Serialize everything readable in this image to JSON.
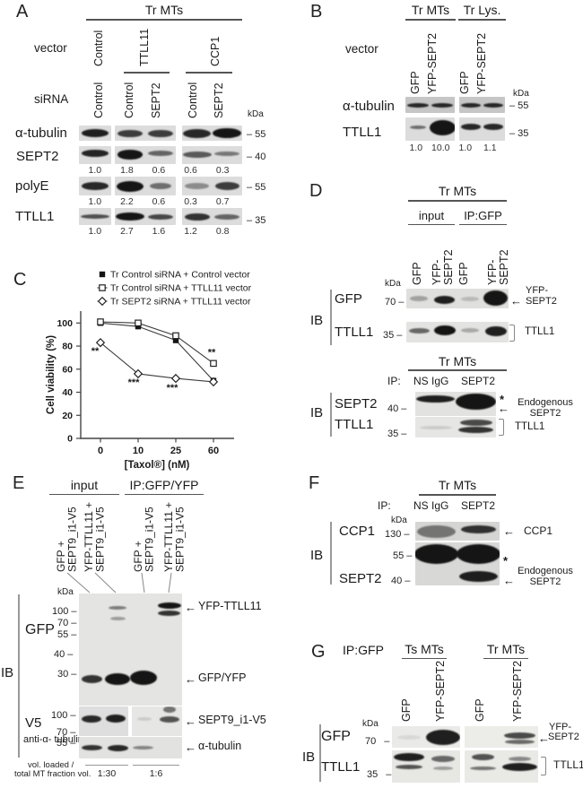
{
  "colors": {
    "text": "#1a1a1a",
    "band": "#151515",
    "membrane": "#dcdcdc",
    "axis": "#444"
  },
  "panelA": {
    "label": "A",
    "header": "Tr MTs",
    "vector_label": "vector",
    "sirna_label": "siRNA",
    "kda_label": "kDa",
    "vector_lanes": [
      "Control",
      "TTLL11",
      "CCP1"
    ],
    "sirna_lanes": [
      "Control",
      "Control",
      "SEPT2",
      "Control",
      "SEPT2"
    ],
    "rows": [
      {
        "label": "α-tubulin",
        "marker": "– 55",
        "strips": [
          [
            {
              "l": 0,
              "y": 0.5,
              "o": 0.95,
              "h": 9,
              "w": 0.82
            }
          ],
          [
            {
              "l": 0,
              "y": 0.5,
              "o": 0.8,
              "h": 8,
              "w": 0.8
            },
            {
              "l": 1,
              "y": 0.55,
              "o": 0.8,
              "h": 8,
              "w": 0.8
            }
          ],
          [
            {
              "l": 0,
              "y": 0.5,
              "o": 0.9,
              "h": 10,
              "w": 0.92
            },
            {
              "l": 1,
              "y": 0.5,
              "o": 1,
              "h": 11,
              "w": 0.95
            }
          ]
        ]
      },
      {
        "label": "SEPT2",
        "marker": "– 40",
        "values": [
          "1.0",
          "1.8",
          "0.6",
          "0.6",
          "0.3"
        ],
        "strips": [
          [
            {
              "l": 0,
              "y": 0.42,
              "o": 0.92,
              "h": 8,
              "w": 0.85
            }
          ],
          [
            {
              "l": 0,
              "y": 0.45,
              "o": 1,
              "h": 11,
              "w": 0.85
            },
            {
              "l": 1,
              "y": 0.42,
              "o": 0.6,
              "h": 6,
              "w": 0.8
            }
          ],
          [
            {
              "l": 0,
              "y": 0.45,
              "o": 0.65,
              "h": 7,
              "w": 0.95
            },
            {
              "l": 1,
              "y": 0.42,
              "o": 0.5,
              "h": 5,
              "w": 0.85
            }
          ]
        ]
      },
      {
        "label": "polyE",
        "marker": "– 55",
        "values": [
          "1.0",
          "2.2",
          "0.6",
          "0.3",
          "0.7"
        ],
        "strips": [
          [
            {
              "l": 0,
              "y": 0.5,
              "o": 0.9,
              "h": 9,
              "w": 0.85
            }
          ],
          [
            {
              "l": 0,
              "y": 0.5,
              "o": 1,
              "h": 12,
              "w": 0.88
            },
            {
              "l": 1,
              "y": 0.5,
              "o": 0.55,
              "h": 7,
              "w": 0.7
            }
          ],
          [
            {
              "l": 0,
              "y": 0.5,
              "o": 0.4,
              "h": 7,
              "w": 0.8
            },
            {
              "l": 1,
              "y": 0.5,
              "o": 0.8,
              "h": 9,
              "w": 0.8
            }
          ]
        ]
      },
      {
        "label": "TTLL1",
        "marker": "– 35",
        "values": [
          "1.0",
          "2.7",
          "1.6",
          "1.2",
          "0.8"
        ],
        "strips": [
          [
            {
              "l": 0,
              "y": 0.5,
              "o": 0.7,
              "h": 5,
              "w": 0.9
            }
          ],
          [
            {
              "l": 0,
              "y": 0.5,
              "o": 1,
              "h": 9,
              "w": 0.95
            },
            {
              "l": 1,
              "y": 0.5,
              "o": 0.75,
              "h": 6,
              "w": 0.8
            }
          ],
          [
            {
              "l": 0,
              "y": 0.5,
              "o": 0.85,
              "h": 8,
              "w": 0.85
            },
            {
              "l": 1,
              "y": 0.5,
              "o": 0.6,
              "h": 6,
              "w": 0.85
            }
          ]
        ]
      }
    ]
  },
  "panelB": {
    "label": "B",
    "headers": [
      "Tr MTs",
      "Tr Lys."
    ],
    "vector_label": "vector",
    "kda_label": "kDa",
    "lanes": [
      "GFP",
      "YFP-SEPT2",
      "GFP",
      "YFP-SEPT2"
    ],
    "rows": [
      {
        "label": "α-tubulin",
        "marker": "– 55",
        "strips": [
          [
            {
              "l": 0,
              "y": 0.5,
              "o": 0.9,
              "h": 5,
              "w": 0.88
            },
            {
              "l": 1,
              "y": 0.5,
              "o": 0.9,
              "h": 5,
              "w": 0.88
            }
          ],
          [
            {
              "l": 0,
              "y": 0.5,
              "o": 0.9,
              "h": 5,
              "w": 0.88
            },
            {
              "l": 1,
              "y": 0.5,
              "o": 0.9,
              "h": 5,
              "w": 0.88
            }
          ]
        ]
      },
      {
        "label": "TTLL1",
        "marker": "– 35",
        "values": [
          "1.0",
          "10.0",
          "1.0",
          "1.1"
        ],
        "strips": [
          [
            {
              "l": 0,
              "y": 0.42,
              "o": 0.55,
              "h": 4,
              "w": 0.65
            },
            {
              "l": 1,
              "y": 0.45,
              "o": 1,
              "h": 17,
              "w": 1.05
            }
          ],
          [
            {
              "l": 0,
              "y": 0.42,
              "o": 0.9,
              "h": 7,
              "w": 0.85
            },
            {
              "l": 1,
              "y": 0.42,
              "o": 0.9,
              "h": 7,
              "w": 0.85
            }
          ]
        ]
      }
    ]
  },
  "panelC": {
    "label": "C"
  },
  "chart_data": {
    "type": "line",
    "xlabel": "[Taxol®] (nM)",
    "ylabel": "Cell viability (%)",
    "categories": [
      "0",
      "10",
      "25",
      "60"
    ],
    "yticks": [
      0,
      20,
      40,
      60,
      80,
      100
    ],
    "ylim": [
      0,
      110
    ],
    "grid": false,
    "legend_position": "top",
    "series": [
      {
        "name": "Tr Control siRNA + Control vector",
        "marker": "filled-square",
        "values": [
          100,
          97,
          85,
          50
        ]
      },
      {
        "name": "Tr Control siRNA + TTLL11 vector",
        "marker": "open-square",
        "values": [
          101,
          100,
          89,
          65
        ]
      },
      {
        "name": "Tr SEPT2 siRNA + TTLL11 vector",
        "marker": "open-diamond",
        "values": [
          83,
          56,
          52,
          49
        ]
      }
    ],
    "annotations": [
      {
        "x": 0,
        "value": 73,
        "dx": -6,
        "text": "**"
      },
      {
        "x": 1,
        "value": 46,
        "dx": -5,
        "text": "***"
      },
      {
        "x": 2,
        "value": 41,
        "dx": -4,
        "text": "***"
      },
      {
        "x": 3,
        "value": 72,
        "dx": -2,
        "text": "**"
      }
    ]
  },
  "panelD": {
    "label": "D",
    "top": {
      "header": "Tr MTs",
      "sub": [
        "input",
        "IP:GFP"
      ],
      "kda_label": "kDa",
      "ib": "IB",
      "lanes": [
        "GFP",
        "YFP-SEPT2",
        "GFP",
        "YFP-SEPT2"
      ],
      "rows": [
        {
          "label": "GFP",
          "marker": "70 –"
        },
        {
          "label": "TTLL1",
          "marker": "35 –"
        }
      ],
      "ann": {
        "arrow": "←",
        "target": [
          "YFP-",
          "SEPT2"
        ],
        "bracket_label": "TTLL1"
      },
      "gfp_bands": [
        {
          "l": 0,
          "y": 0.5,
          "o": 0.3,
          "h": 6,
          "w": 0.7
        },
        {
          "l": 1,
          "y": 0.55,
          "o": 0.95,
          "h": 9,
          "w": 0.8
        },
        {
          "l": 2,
          "y": 0.5,
          "o": 0.18,
          "h": 5,
          "w": 0.7
        },
        {
          "l": 3,
          "y": 0.48,
          "o": 1,
          "h": 17,
          "w": 0.95
        }
      ],
      "ttll1_bands": [
        {
          "l": 0,
          "y": 0.42,
          "o": 0.6,
          "h": 6,
          "w": 0.8
        },
        {
          "l": 1,
          "y": 0.42,
          "o": 1,
          "h": 11,
          "w": 0.85
        },
        {
          "l": 2,
          "y": 0.42,
          "o": 0.28,
          "h": 5,
          "w": 0.7
        },
        {
          "l": 3,
          "y": 0.45,
          "o": 0.95,
          "h": 11,
          "w": 0.85
        }
      ]
    },
    "bottom": {
      "header": "Tr MTs",
      "ip": "IP:",
      "ib": "IB",
      "lanes": [
        "NS IgG",
        "SEPT2"
      ],
      "rows": [
        {
          "label": "SEPT2",
          "marker": "40 –"
        },
        {
          "label": "TTLL1",
          "marker": "35 –"
        }
      ],
      "ann": {
        "star": "*",
        "arrow": "←",
        "target": [
          "Endogenous",
          "SEPT2"
        ],
        "bracket_label": "TTLL1"
      },
      "sept2_bands": [
        {
          "l": 0,
          "y": 0.3,
          "o": 0.95,
          "h": 8,
          "w": 0.95
        },
        {
          "l": 1,
          "y": 0.42,
          "o": 1,
          "h": 18,
          "w": 1.0
        }
      ],
      "ttll1_bands": [
        {
          "l": 0,
          "y": 0.5,
          "o": 0.12,
          "h": 4,
          "w": 0.8
        },
        {
          "l": 1,
          "y": 0.28,
          "o": 0.75,
          "h": 7,
          "w": 0.8
        },
        {
          "l": 1,
          "y": 0.62,
          "o": 0.85,
          "h": 7,
          "w": 0.85
        }
      ]
    }
  },
  "panelE": {
    "label": "E",
    "headers": [
      "input",
      "IP:GFP/YFP"
    ],
    "kda_label": "kDa",
    "ib": "IB",
    "lanes": [
      [
        "GFP +",
        "SEPT9_i1-V5"
      ],
      [
        "YFP-TTLL11 +",
        "SEPT9_i1-V5"
      ],
      [
        "GFP +",
        "SEPT9_i1-V5"
      ],
      [
        "YFP-TTLL11 +",
        "SEPT9_i1-V5"
      ]
    ],
    "gfp_label": "GFP",
    "gfp_markers": [
      "100 –",
      "70 –",
      "55 –",
      "40 –",
      "30 –"
    ],
    "v5_label": "V5",
    "v5_markers": [
      "100 –",
      "70 –"
    ],
    "tub_label": [
      "anti-α-",
      "tubulin"
    ],
    "tub_marker": "55 –",
    "arrows": [
      {
        "glyph": "←",
        "text": "YFP-TTLL11"
      },
      {
        "glyph": "←",
        "text": "GFP/YFP"
      },
      {
        "glyph": "←",
        "text": "SEPT9_i1-V5"
      },
      {
        "glyph": "←",
        "text": "α-tubulin"
      }
    ],
    "footer": {
      "line1": "vol. loaded /",
      "line2": "total MT fraction vol.",
      "ratios": [
        "1:30",
        "1:6"
      ]
    },
    "gfp_bands": [
      {
        "l": 1,
        "y": 0.13,
        "o": 0.5,
        "h": 4,
        "w": 0.7
      },
      {
        "l": 1,
        "y": 0.22,
        "o": 0.35,
        "h": 4,
        "w": 0.6
      },
      {
        "l": 3,
        "y": 0.11,
        "o": 1,
        "h": 7,
        "w": 0.9
      },
      {
        "l": 3,
        "y": 0.175,
        "o": 0.85,
        "h": 6,
        "w": 0.85
      },
      {
        "l": 0,
        "y": 0.76,
        "o": 0.85,
        "h": 9,
        "w": 0.8
      },
      {
        "l": 1,
        "y": 0.76,
        "o": 1,
        "h": 13,
        "w": 0.95
      },
      {
        "l": 2,
        "y": 0.755,
        "o": 1,
        "h": 16,
        "w": 1.05
      }
    ],
    "v5_bands_input": [
      {
        "l": 0,
        "y": 0.42,
        "o": 0.9,
        "h": 8,
        "w": 0.8
      },
      {
        "l": 1,
        "y": 0.42,
        "o": 0.95,
        "h": 9,
        "w": 0.8
      }
    ],
    "v5_bands_ip": [
      {
        "l": 0,
        "y": 0.42,
        "o": 0.12,
        "h": 4,
        "w": 0.6
      },
      {
        "l": 1,
        "y": 0.45,
        "o": 0.7,
        "h": 7,
        "w": 0.8
      },
      {
        "l": 1,
        "y": 0.1,
        "o": 0.55,
        "h": 7,
        "w": 0.5
      }
    ],
    "tub_bands": [
      {
        "l": 0,
        "y": 0.5,
        "o": 0.85,
        "h": 6,
        "w": 0.8
      },
      {
        "l": 1,
        "y": 0.5,
        "o": 0.9,
        "h": 7,
        "w": 0.8
      },
      {
        "l": 2,
        "y": 0.5,
        "o": 0.45,
        "h": 4,
        "w": 0.8
      }
    ]
  },
  "panelF": {
    "label": "F",
    "header": "Tr MTs",
    "ip": "IP:",
    "kda_label": "kDa",
    "ib": "IB",
    "lanes": [
      "NS IgG",
      "SEPT2"
    ],
    "rows": [
      {
        "label": "CCP1",
        "marker": "130 –"
      },
      {
        "label": "SEPT2",
        "marker": "40 –"
      }
    ],
    "marker_55": "55 –",
    "ann": {
      "arrow": "←",
      "ccp1": "CCP1",
      "star": "*",
      "target": [
        "Endogenous",
        "SEPT2"
      ]
    },
    "ccp1_bands": [
      {
        "l": 0,
        "y": 0.5,
        "o": 0.5,
        "h": 14,
        "w": 0.9
      },
      {
        "l": 1,
        "y": 0.42,
        "o": 0.85,
        "h": 9,
        "w": 0.85
      }
    ],
    "sept2_bands": [
      {
        "l": 0,
        "y": 0.28,
        "o": 1,
        "h": 22,
        "w": 1.05
      },
      {
        "l": 1,
        "y": 0.28,
        "o": 1,
        "h": 22,
        "w": 1.05
      },
      {
        "l": 1,
        "y": 0.8,
        "o": 0.95,
        "h": 12,
        "w": 0.9
      }
    ]
  },
  "panelG": {
    "label": "G",
    "ip_header": "IP:GFP",
    "groups": [
      "Ts MTs",
      "Tr MTs"
    ],
    "kda_label": "kDa",
    "ib": "IB",
    "lanes": [
      "GFP",
      "YFP-SEPT2",
      "GFP",
      "YFP-SEPT2"
    ],
    "rows": [
      {
        "label": "GFP",
        "marker": "70 –"
      },
      {
        "label": "TTLL1",
        "marker": "35 –"
      }
    ],
    "ann": {
      "arrow": "←",
      "target": [
        "YFP-",
        "SEPT2"
      ],
      "bracket_label": "TTLL1"
    },
    "gfp_bands_ts": [
      {
        "l": 0,
        "y": 0.5,
        "o": 0.08,
        "h": 5,
        "w": 0.7
      },
      {
        "l": 1,
        "y": 0.5,
        "o": 0.95,
        "h": 17,
        "w": 1.0
      }
    ],
    "gfp_bands_tr": [
      {
        "l": 1,
        "y": 0.42,
        "o": 0.75,
        "h": 7,
        "w": 0.85
      },
      {
        "l": 1,
        "y": 0.72,
        "o": 0.6,
        "h": 5,
        "w": 0.8
      }
    ],
    "ttll1_bands_ts": [
      {
        "l": 0,
        "y": 0.22,
        "o": 0.95,
        "h": 9,
        "w": 0.9
      },
      {
        "l": 0,
        "y": 0.52,
        "o": 0.7,
        "h": 5,
        "w": 0.8
      },
      {
        "l": 1,
        "y": 0.25,
        "o": 0.6,
        "h": 7,
        "w": 0.7
      },
      {
        "l": 1,
        "y": 0.55,
        "o": 0.35,
        "h": 4,
        "w": 0.6
      }
    ],
    "ttll1_bands_tr": [
      {
        "l": 0,
        "y": 0.22,
        "o": 0.7,
        "h": 7,
        "w": 0.6
      },
      {
        "l": 0,
        "y": 0.55,
        "o": 0.55,
        "h": 4,
        "w": 0.7
      },
      {
        "l": 1,
        "y": 0.5,
        "o": 0.95,
        "h": 9,
        "w": 0.95
      },
      {
        "l": 1,
        "y": 0.25,
        "o": 0.45,
        "h": 5,
        "w": 0.6
      }
    ]
  }
}
